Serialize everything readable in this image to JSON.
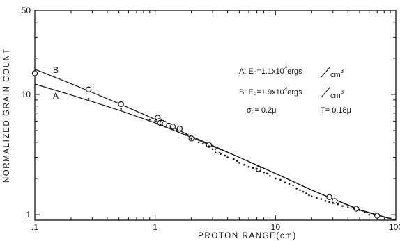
{
  "chart_data": {
    "type": "scatter",
    "title": "",
    "xlabel": "PROTON RANGE(cm)",
    "ylabel": "NORMALIZED GRAIN COUNT",
    "x_scale": "log",
    "y_scale": "log",
    "xlim": [
      0.1,
      100
    ],
    "ylim": [
      0.9,
      50
    ],
    "x_ticks": [
      {
        "value": 0.1,
        "label": ".1"
      },
      {
        "value": 1,
        "label": "1"
      },
      {
        "value": 10,
        "label": "10"
      },
      {
        "value": 100,
        "label": "100"
      }
    ],
    "y_ticks": [
      {
        "value": 1,
        "label": "1"
      },
      {
        "value": 10,
        "label": "10"
      },
      {
        "value": 50,
        "label": "50"
      }
    ],
    "grid": false,
    "series": [
      {
        "name": "A",
        "kind": "line",
        "x": [
          0.1,
          0.2,
          0.5,
          1,
          2,
          5,
          10,
          20,
          50,
          100
        ],
        "y": [
          12.2,
          9.9,
          7.4,
          5.8,
          4.4,
          3.0,
          2.2,
          1.6,
          1.09,
          0.84
        ]
      },
      {
        "name": "B",
        "kind": "line",
        "x": [
          0.1,
          0.2,
          0.5,
          1,
          2,
          5,
          10,
          20,
          50,
          100
        ],
        "y": [
          16.2,
          12.3,
          8.4,
          6.2,
          4.5,
          3.0,
          2.2,
          1.6,
          1.1,
          0.84
        ]
      },
      {
        "kind": "open-circles",
        "x": [
          0.1,
          0.28,
          0.52,
          1.05,
          1.08,
          1.1,
          1.15,
          1.2,
          1.3,
          1.4,
          1.6,
          2.0,
          2.8,
          3.3,
          7.2,
          28,
          31,
          47,
          70
        ],
        "y": [
          15,
          11,
          8.3,
          6.4,
          6.0,
          5.8,
          5.8,
          5.7,
          5.5,
          5.4,
          5.2,
          4.3,
          3.8,
          3.4,
          2.4,
          1.4,
          1.3,
          1.12,
          0.98
        ]
      },
      {
        "kind": "dots",
        "x": [
          0.28,
          0.52,
          0.9,
          1.0,
          1.2,
          1.5,
          1.8,
          2.0,
          2.3,
          2.5,
          2.8,
          3.0,
          3.5,
          3.8,
          4.0,
          4.5,
          4.8,
          5.0,
          5.5,
          6.0,
          6.5,
          7.0,
          7.5,
          8.0,
          8.5,
          9.0,
          10.0,
          11.0,
          12.0,
          13.0,
          14.0,
          15.0,
          16.0,
          17.0,
          18.0,
          19.0,
          20.0,
          22.0,
          24.0,
          26.0,
          28.0,
          30.0,
          33.0,
          36.0,
          40.0,
          45.0,
          50.0,
          55.0,
          60.0
        ],
        "y": [
          9.2,
          7.6,
          6.2,
          6.0,
          5.4,
          5.0,
          4.6,
          4.3,
          4.0,
          3.9,
          3.7,
          3.5,
          3.2,
          3.1,
          3.0,
          2.9,
          2.8,
          2.7,
          2.6,
          2.5,
          2.45,
          2.4,
          2.3,
          2.25,
          2.2,
          2.1,
          2.0,
          1.95,
          1.85,
          1.8,
          1.75,
          1.65,
          1.6,
          1.55,
          1.5,
          1.45,
          1.42,
          1.38,
          1.35,
          1.3,
          1.27,
          1.25,
          1.22,
          1.18,
          1.15,
          1.12,
          1.09,
          1.05,
          1.0
        ]
      }
    ],
    "curve_labels": [
      {
        "text": "B",
        "series": "B"
      },
      {
        "text": "A",
        "series": "A"
      }
    ],
    "annotations": {
      "lineA": {
        "prefix": "A: E₀=1.1x10",
        "sup": "4",
        "suffix": "ergs",
        "denom": "cm",
        "denom_sup": "3"
      },
      "lineB": {
        "prefix": "B: E₀=1.9x10",
        "sup": "4",
        "suffix": "ergs",
        "denom": "cm",
        "denom_sup": "3"
      },
      "sigma": "σ₀= 0.2μ",
      "tau": "Τ= 0.18μ"
    }
  }
}
